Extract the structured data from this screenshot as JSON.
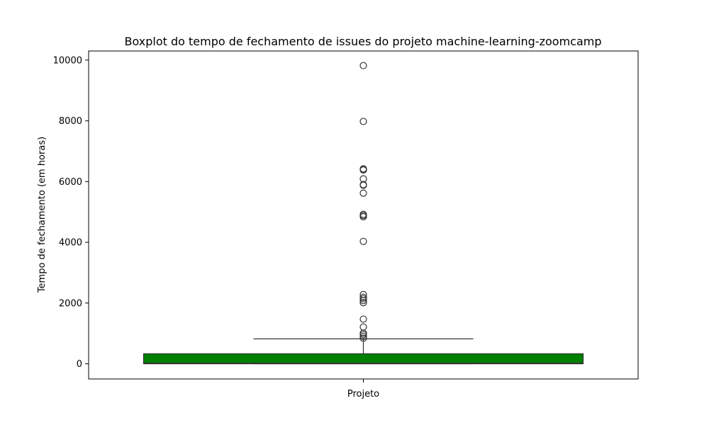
{
  "chart_data": {
    "type": "boxplot",
    "title": "Boxplot do tempo de fechamento de issues do projeto machine-learning-zoomcamp",
    "xlabel": "",
    "ylabel": "Tempo de fechamento (em horas)",
    "categories": [
      "Projeto"
    ],
    "ylim": [
      -500,
      10300
    ],
    "yticks": [
      0,
      2000,
      4000,
      6000,
      8000,
      10000
    ],
    "grid": false,
    "box_color": "#008000",
    "box": {
      "min": 0,
      "q1": 0,
      "median": 20,
      "q3": 330,
      "max": 820
    },
    "outliers": [
      9820,
      7980,
      6420,
      6390,
      6380,
      6090,
      5900,
      5880,
      5620,
      4920,
      4880,
      4840,
      4030,
      2280,
      2190,
      2140,
      2080,
      2010,
      1470,
      1210,
      1010,
      960,
      900,
      840
    ]
  }
}
